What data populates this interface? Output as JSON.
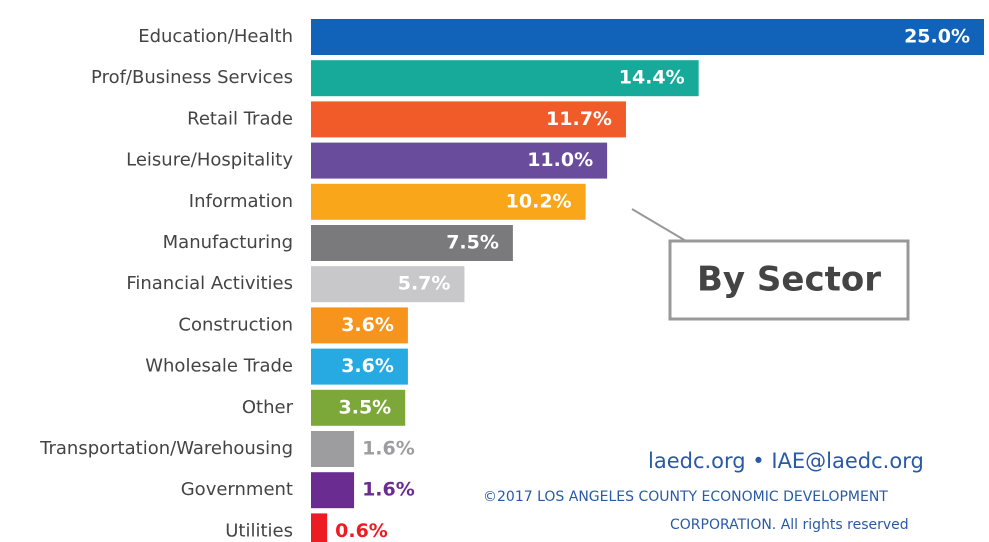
{
  "chart_data": {
    "type": "bar",
    "orientation": "horizontal",
    "categories": [
      "Education/Health",
      "Prof/Business Services",
      "Retail Trade",
      "Leisure/Hospitality",
      "Information",
      "Manufacturing",
      "Financial Activities",
      "Construction",
      "Wholesale Trade",
      "Other",
      "Transportation/Warehousing",
      "Government",
      "Utilities"
    ],
    "values": [
      25.0,
      14.4,
      11.7,
      11.0,
      10.2,
      7.5,
      5.7,
      3.6,
      3.6,
      3.5,
      1.6,
      1.6,
      0.6
    ],
    "value_labels": [
      "25.0%",
      "14.4%",
      "11.7%",
      "11.0%",
      "10.2%",
      "7.5%",
      "5.7%",
      "3.6%",
      "3.6%",
      "3.5%",
      "1.6%",
      "1.6%",
      "0.6%"
    ],
    "colors": [
      "#1063b8",
      "#17a99a",
      "#f15a29",
      "#6a4c9c",
      "#f9a61a",
      "#7a7a7c",
      "#c8c8ca",
      "#f7941d",
      "#27aae1",
      "#7ca83a",
      "#9d9d9f",
      "#6b2c91",
      "#ed1c24"
    ],
    "xlim": [
      0,
      25
    ],
    "annotation": "By Sector",
    "footer": {
      "contact": "laedc.org • IAE@laedc.org",
      "copyright_line1": "©2017 LOS ANGELES COUNTY ECONOMIC DEVELOPMENT",
      "copyright_line2": "CORPORATION.  All rights reserved"
    }
  }
}
